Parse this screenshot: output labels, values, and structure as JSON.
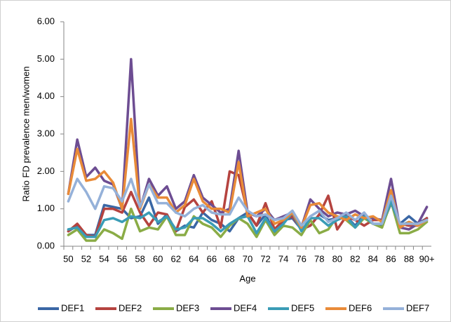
{
  "chart_data": {
    "type": "line",
    "y_label": "Ratio FD prevalence men/women",
    "x_label": "Age",
    "categories": [
      "50",
      null,
      "52",
      null,
      "54",
      null,
      "56",
      null,
      "58",
      null,
      "60",
      null,
      "62",
      null,
      "64",
      null,
      "66",
      null,
      "68",
      null,
      "70",
      null,
      "72",
      null,
      "74",
      null,
      "76",
      null,
      "78",
      null,
      "80",
      null,
      "82",
      null,
      "84",
      null,
      "86",
      null,
      "88",
      null,
      "90+"
    ],
    "ylim": [
      0,
      6
    ],
    "yticks": [
      {
        "value": 0,
        "label": "0.00"
      },
      {
        "value": 1,
        "label": "1.00"
      },
      {
        "value": 2,
        "label": "2.00"
      },
      {
        "value": 3,
        "label": "3.00"
      },
      {
        "value": 4,
        "label": "4.00"
      },
      {
        "value": 5,
        "label": "5.00"
      },
      {
        "value": 6,
        "label": "6.00"
      }
    ],
    "grid": false,
    "legend": "bottom",
    "series": [
      {
        "name": "DEF1",
        "color": "#3a67a5",
        "values": [
          0.4,
          0.55,
          0.3,
          0.3,
          1.1,
          1.05,
          1.0,
          0.75,
          0.8,
          1.3,
          0.6,
          0.85,
          0.4,
          0.55,
          0.5,
          0.9,
          0.7,
          0.6,
          0.4,
          0.75,
          0.9,
          0.55,
          0.85,
          0.35,
          0.7,
          0.75,
          0.45,
          0.55,
          0.85,
          0.7,
          0.75,
          0.8,
          0.55,
          0.85,
          0.6,
          0.55,
          1.15,
          0.6,
          0.8,
          0.6,
          0.75
        ]
      },
      {
        "name": "DEF2",
        "color": "#b5433f",
        "values": [
          0.4,
          0.6,
          0.3,
          0.25,
          1.0,
          1.0,
          0.9,
          1.45,
          0.9,
          0.55,
          0.9,
          0.85,
          0.4,
          1.05,
          1.25,
          0.9,
          1.2,
          0.5,
          2.0,
          1.9,
          0.9,
          0.55,
          1.15,
          0.45,
          0.7,
          0.8,
          0.45,
          0.55,
          0.85,
          1.35,
          0.45,
          0.8,
          0.7,
          0.55,
          0.7,
          0.7,
          1.2,
          0.6,
          0.55,
          0.55,
          0.75
        ]
      },
      {
        "name": "DEF3",
        "color": "#8aac46",
        "values": [
          0.3,
          0.45,
          0.15,
          0.15,
          0.45,
          0.35,
          0.2,
          1.0,
          0.4,
          0.5,
          0.45,
          0.8,
          0.3,
          0.3,
          0.8,
          0.6,
          0.5,
          0.25,
          0.55,
          0.75,
          0.6,
          0.25,
          0.7,
          0.3,
          0.55,
          0.5,
          0.3,
          0.7,
          0.35,
          0.45,
          0.8,
          0.7,
          0.5,
          0.75,
          0.6,
          0.5,
          1.2,
          0.35,
          0.35,
          0.45,
          0.65
        ]
      },
      {
        "name": "DEF4",
        "color": "#6d4d92",
        "values": [
          1.4,
          2.85,
          1.85,
          2.1,
          1.75,
          1.65,
          1.0,
          5.0,
          1.0,
          1.8,
          1.35,
          1.6,
          1.0,
          1.2,
          1.9,
          1.3,
          1.1,
          0.9,
          1.0,
          2.55,
          0.9,
          0.8,
          1.0,
          0.7,
          0.8,
          0.9,
          0.5,
          1.25,
          1.0,
          0.8,
          0.9,
          0.85,
          0.95,
          0.8,
          0.75,
          0.7,
          1.8,
          0.5,
          0.45,
          0.6,
          1.05
        ]
      },
      {
        "name": "DEF5",
        "color": "#3a9cb6",
        "values": [
          0.45,
          0.5,
          0.25,
          0.25,
          0.7,
          0.75,
          0.65,
          0.8,
          0.75,
          0.9,
          0.65,
          0.8,
          0.45,
          0.5,
          0.75,
          0.75,
          0.6,
          0.4,
          0.6,
          0.75,
          0.8,
          0.35,
          0.75,
          0.4,
          0.6,
          0.9,
          0.4,
          0.75,
          0.75,
          0.55,
          0.7,
          0.8,
          0.5,
          0.8,
          0.6,
          0.6,
          1.2,
          0.55,
          0.65,
          0.55,
          0.7
        ]
      },
      {
        "name": "DEF6",
        "color": "#e98b38",
        "values": [
          1.4,
          2.6,
          1.75,
          1.8,
          2.0,
          1.7,
          1.0,
          3.4,
          1.0,
          1.65,
          1.3,
          1.3,
          0.9,
          1.1,
          1.8,
          1.2,
          1.0,
          1.0,
          0.9,
          2.25,
          0.8,
          0.9,
          1.0,
          0.6,
          0.7,
          0.9,
          0.5,
          1.1,
          1.15,
          0.9,
          0.8,
          0.7,
          0.85,
          0.75,
          0.8,
          0.65,
          1.5,
          0.5,
          0.65,
          0.55,
          0.7
        ]
      },
      {
        "name": "DEF7",
        "color": "#95b1d9",
        "values": [
          1.2,
          1.8,
          1.45,
          1.0,
          1.6,
          1.55,
          1.2,
          1.8,
          1.05,
          1.65,
          1.15,
          1.15,
          0.9,
          0.8,
          1.0,
          1.1,
          0.9,
          0.85,
          0.85,
          1.3,
          0.95,
          0.8,
          0.85,
          0.7,
          0.75,
          0.95,
          0.55,
          0.8,
          0.95,
          0.65,
          0.75,
          0.9,
          0.7,
          0.9,
          0.6,
          0.6,
          1.35,
          0.6,
          0.6,
          0.6,
          0.7
        ]
      }
    ]
  }
}
